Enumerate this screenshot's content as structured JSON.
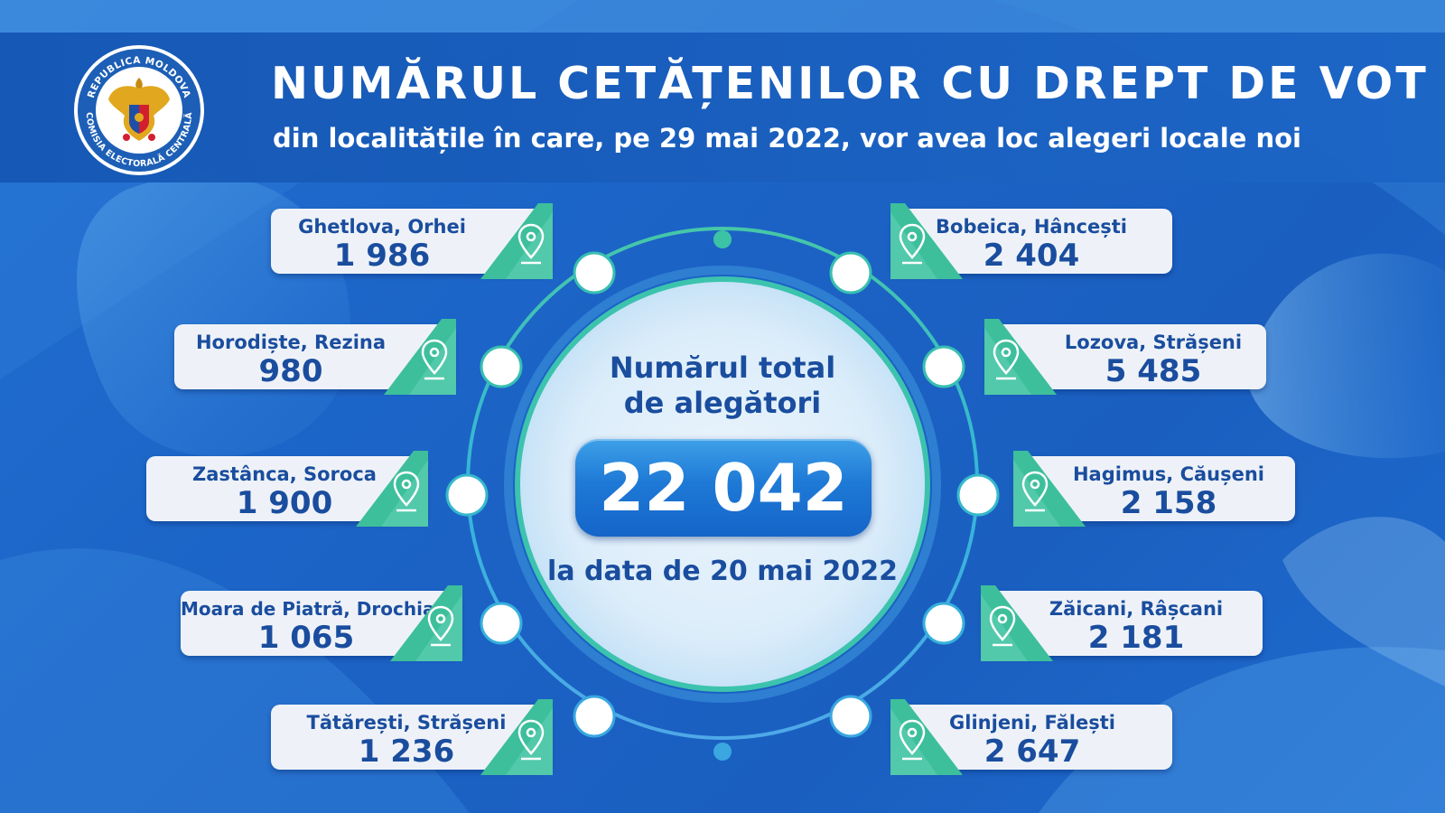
{
  "header": {
    "title": "NUMĂRUL CETĂȚENILOR CU DREPT DE VOT",
    "subtitle": "din localitățile în care, pe 29 mai 2022, vor avea loc alegeri locale noi"
  },
  "logo": {
    "top_text": "REPUBLICA MOLDOVA",
    "bottom_text": "COMISIA ELECTORALĂ CENTRALĂ"
  },
  "total": {
    "label_line1": "Numărul total",
    "label_line2": "de alegători",
    "value": "22 042",
    "date": "la data de 20 mai 2022"
  },
  "localities_left": [
    {
      "name": "Ghetlova, Orhei",
      "value": "1 986"
    },
    {
      "name": "Horodiște, Rezina",
      "value": "980"
    },
    {
      "name": "Zastânca, Soroca",
      "value": "1 900"
    },
    {
      "name": "Moara de Piatră, Drochia",
      "value": "1 065"
    },
    {
      "name": "Tătărești, Strășeni",
      "value": "1 236"
    }
  ],
  "localities_right": [
    {
      "name": "Bobeica, Hâncești",
      "value": "2 404"
    },
    {
      "name": "Lozova, Strășeni",
      "value": "5 485"
    },
    {
      "name": "Hagimus, Căușeni",
      "value": "2 158"
    },
    {
      "name": "Zăicani, Râșcani",
      "value": "2 181"
    },
    {
      "name": "Glinjeni, Fălești",
      "value": "2 647"
    }
  ],
  "colors": {
    "background": "#1c63c6",
    "text_dark_blue": "#1a4d9e",
    "ring_teal": "#3fc3b0",
    "pin_green": "#3dbf9b"
  },
  "icons": [
    "location-pin-icon"
  ]
}
